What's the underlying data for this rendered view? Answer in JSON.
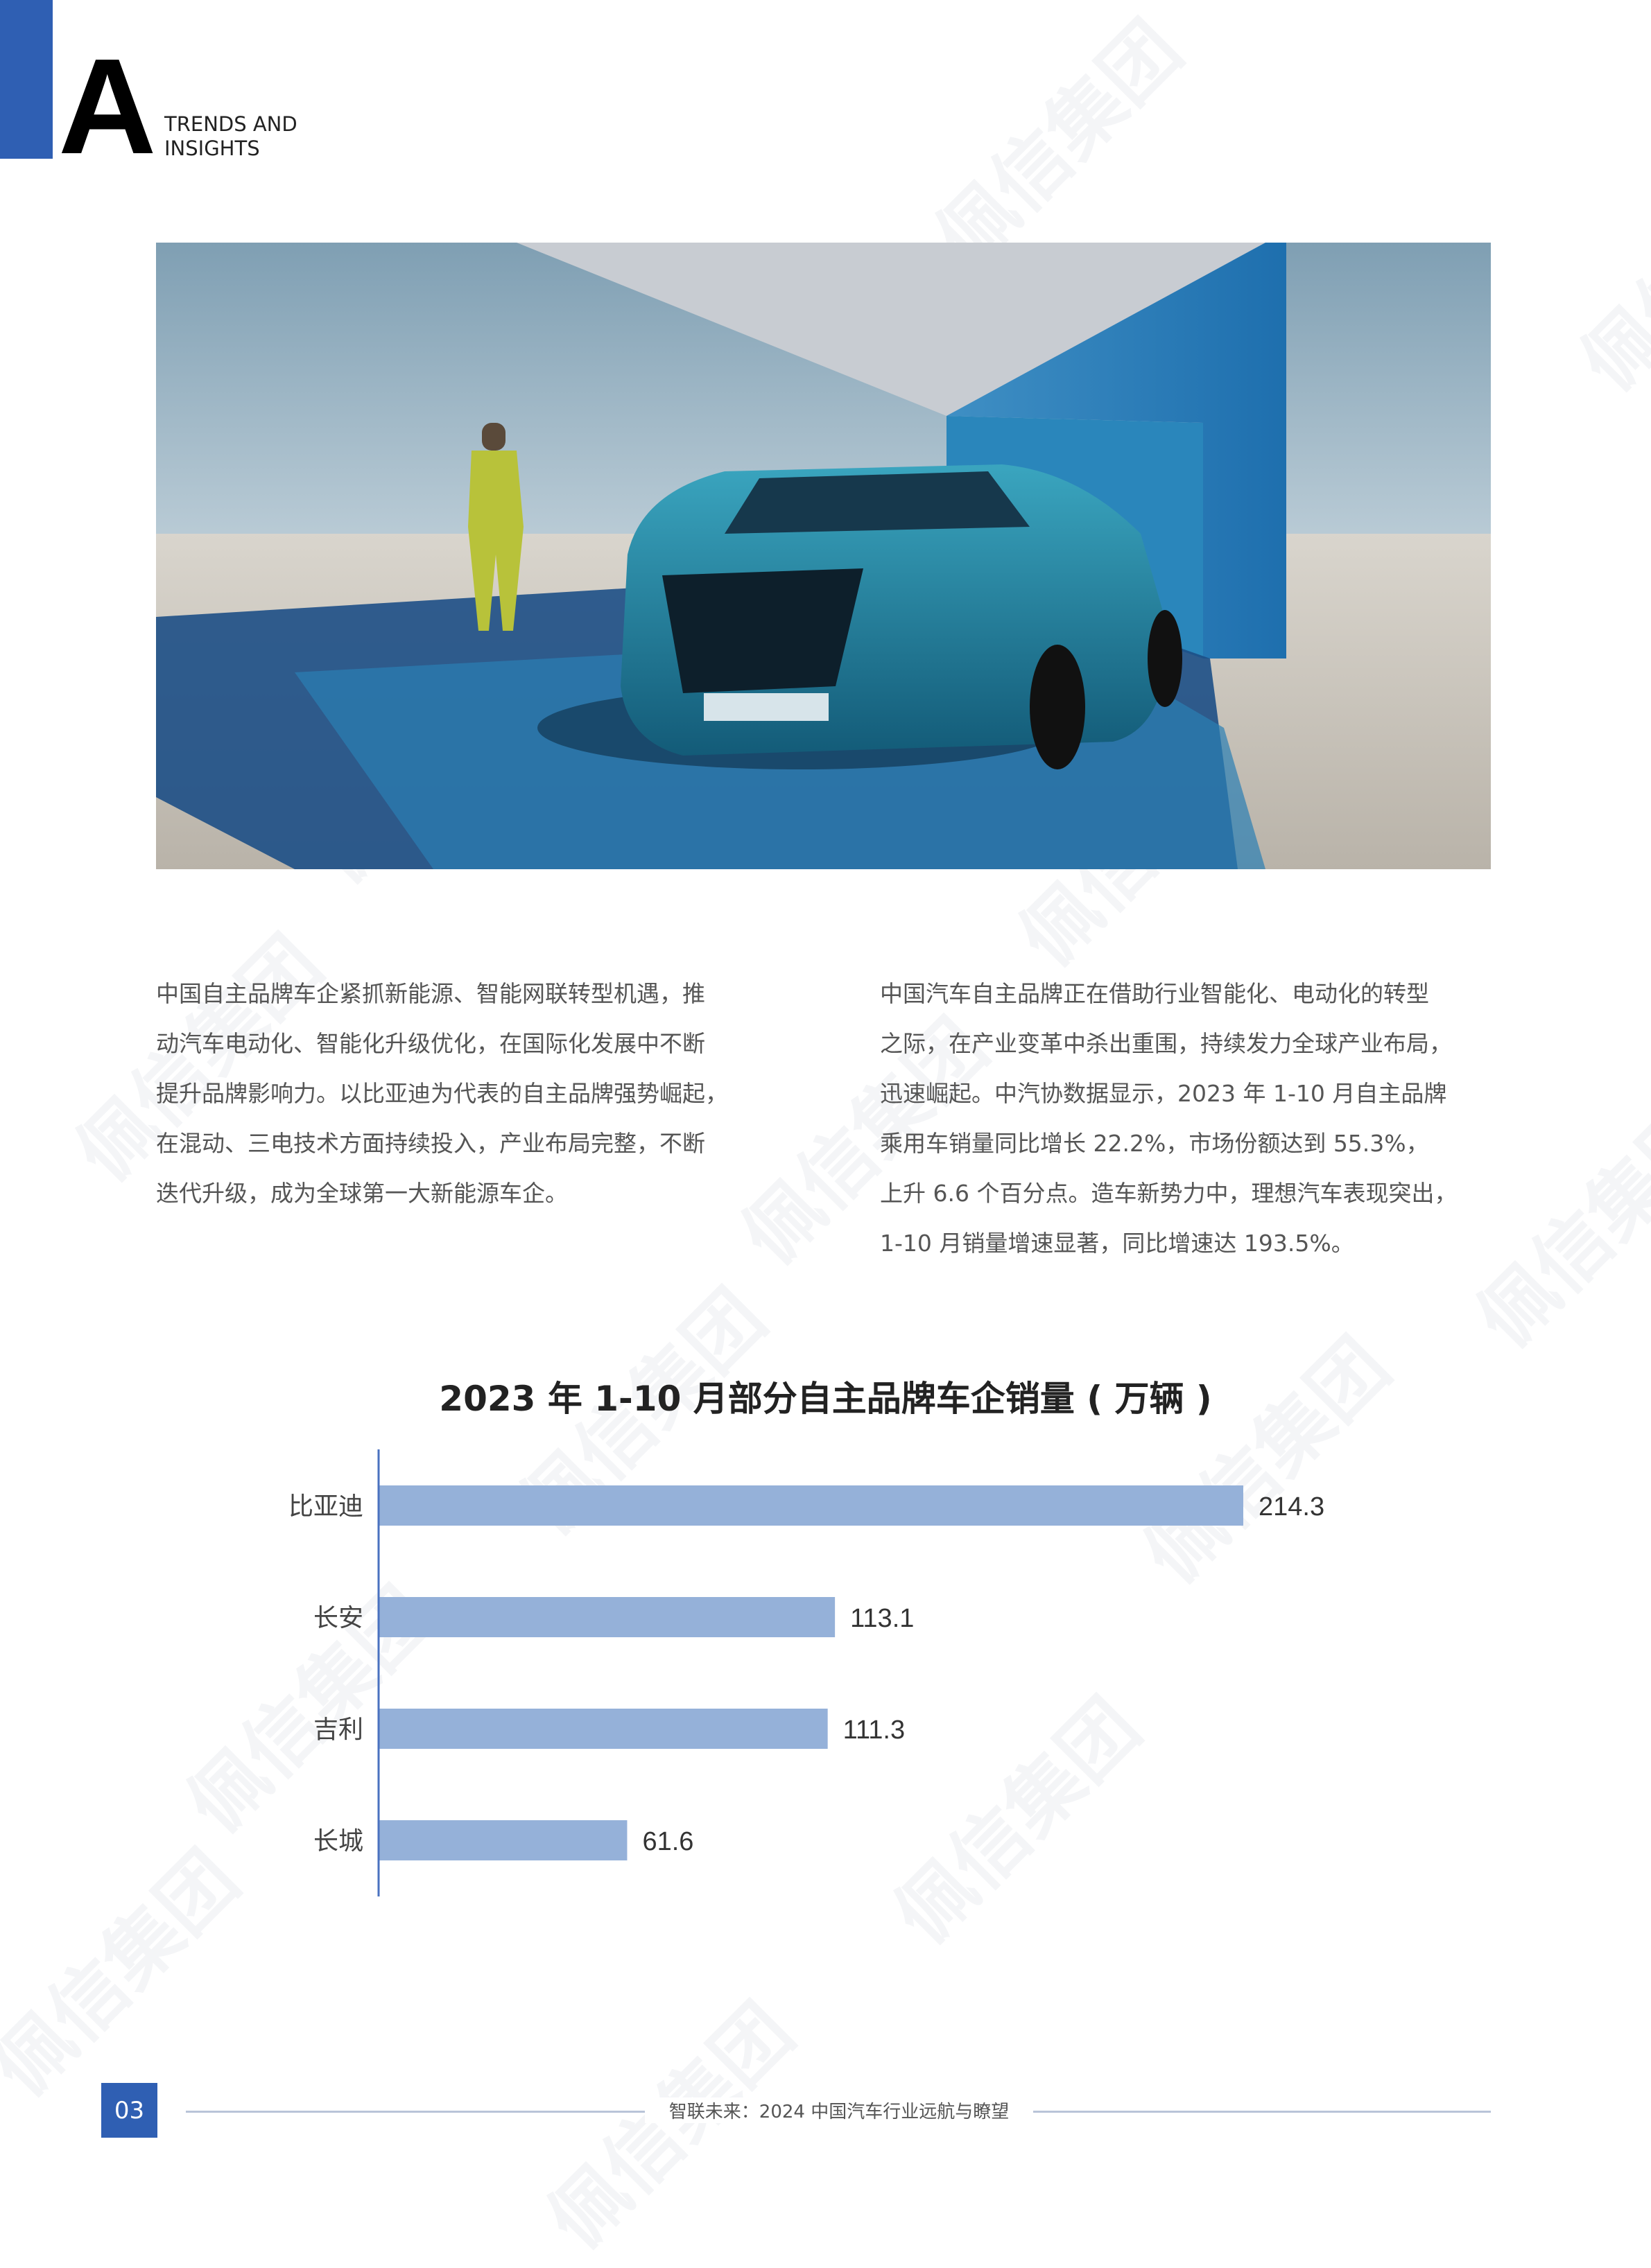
{
  "header": {
    "section_letter": "A",
    "section_title_line1": "TRENDS AND",
    "section_title_line2": "INSIGHTS"
  },
  "hero_image": {
    "description_icon": "car-photo"
  },
  "paragraphs": {
    "left": [
      "中国自主品牌车企紧抓新能源、智能网联转型机遇，推",
      "动汽车电动化、智能化升级优化，在国际化发展中不断",
      "提升品牌影响力。以比亚迪为代表的自主品牌强势崛起，",
      "在混动、三电技术方面持续投入，产业布局完整，不断",
      "迭代升级，成为全球第一大新能源车企。"
    ],
    "right": [
      "中国汽车自主品牌正在借助行业智能化、电动化的转型",
      "之际，在产业变革中杀出重围，持续发力全球产业布局，",
      "迅速崛起。中汽协数据显示，2023 年 1-10 月自主品牌",
      "乘用车销量同比增长 22.2%，市场份额达到 55.3%，",
      "上升 6.6 个百分点。造车新势力中，理想汽车表现突出，",
      "1-10 月销量增速显著，同比增速达 193.5%。"
    ]
  },
  "chart_data": {
    "type": "bar",
    "orientation": "horizontal",
    "title": "2023 年 1-10 月部分自主品牌车企销量 ( 万辆 )",
    "categories": [
      "比亚迪",
      "长安",
      "吉利",
      "长城"
    ],
    "values": [
      214.3,
      113.1,
      111.3,
      61.6
    ],
    "data_labels": [
      "214.3",
      "113.1",
      "111.3",
      "61.6"
    ],
    "xlim": [
      0,
      214.3
    ],
    "grid": false,
    "bar_color": "#95b1d9",
    "axis_color": "#4a72c0"
  },
  "footer": {
    "page_number": "03",
    "title": "智联未来：2024 中国汽车行业远航与瞭望"
  },
  "watermark": "佩信集团",
  "colors": {
    "brand_blue": "#2f5fb3",
    "text_gray": "#555555"
  }
}
